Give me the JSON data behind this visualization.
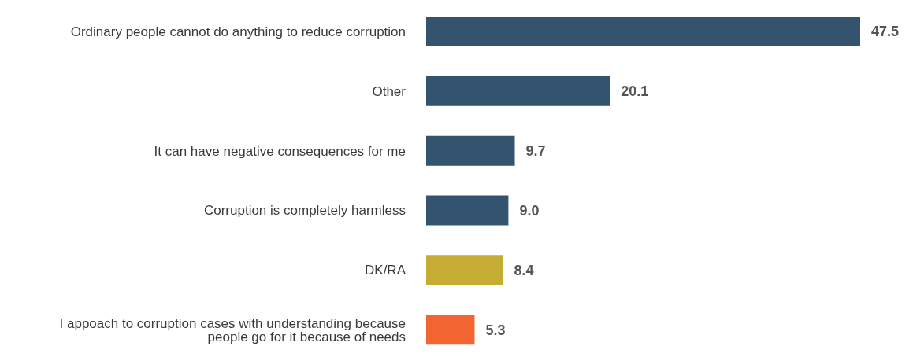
{
  "chart_data": {
    "type": "bar",
    "orientation": "horizontal",
    "categories": [
      "Ordinary people cannot do anything to reduce corruption",
      "Other",
      "It can have negative consequences for me",
      "Corruption is completely harmless",
      "DK/RA",
      "I appoach to corruption cases with understanding because people go for it because of needs"
    ],
    "values": [
      47.5,
      20.1,
      9.7,
      9.0,
      8.4,
      5.3
    ],
    "value_labels": [
      "47.5",
      "20.1",
      "9.7",
      "9.0",
      "8.4",
      "5.3"
    ],
    "colors": [
      "#34536e",
      "#34536e",
      "#34536e",
      "#34536e",
      "#c5ac33",
      "#f26430"
    ]
  }
}
